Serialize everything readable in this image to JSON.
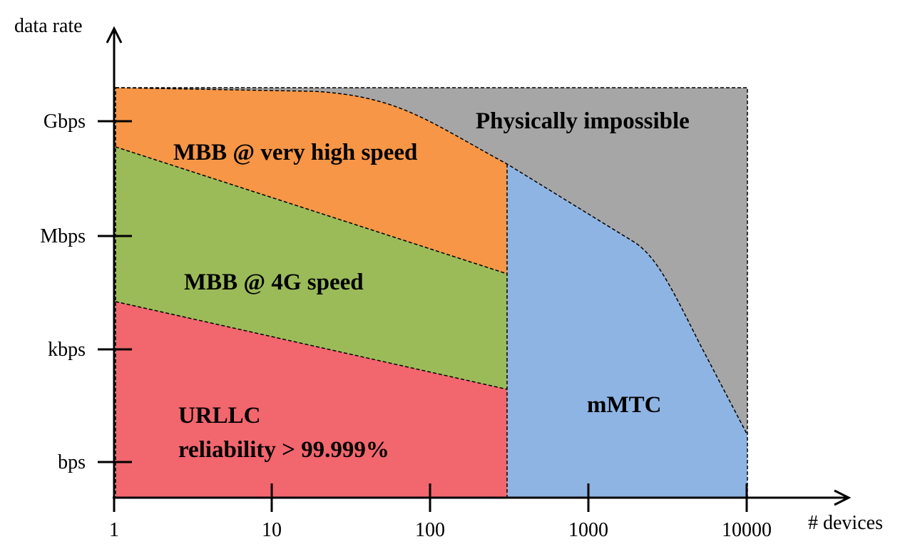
{
  "axes": {
    "y_label": "data rate",
    "x_label": "# devices"
  },
  "y_ticks": [
    "Gbps",
    "Mbps",
    "kbps",
    "bps"
  ],
  "x_ticks": [
    "1",
    "10",
    "100",
    "1000",
    "10000"
  ],
  "regions": {
    "impossible": {
      "label": "Physically impossible",
      "color": "#A6A6A6"
    },
    "mbb_high": {
      "label": "MBB @ very high speed",
      "color": "#F79646"
    },
    "mbb_4g": {
      "label": "MBB @ 4G speed",
      "color": "#9BBB59"
    },
    "urllc": {
      "label": "URLLC",
      "sublabel": "reliability > 99.999%",
      "color": "#F2666E"
    },
    "mmtc": {
      "label": "mMTC",
      "color": "#8EB4E3"
    }
  }
}
